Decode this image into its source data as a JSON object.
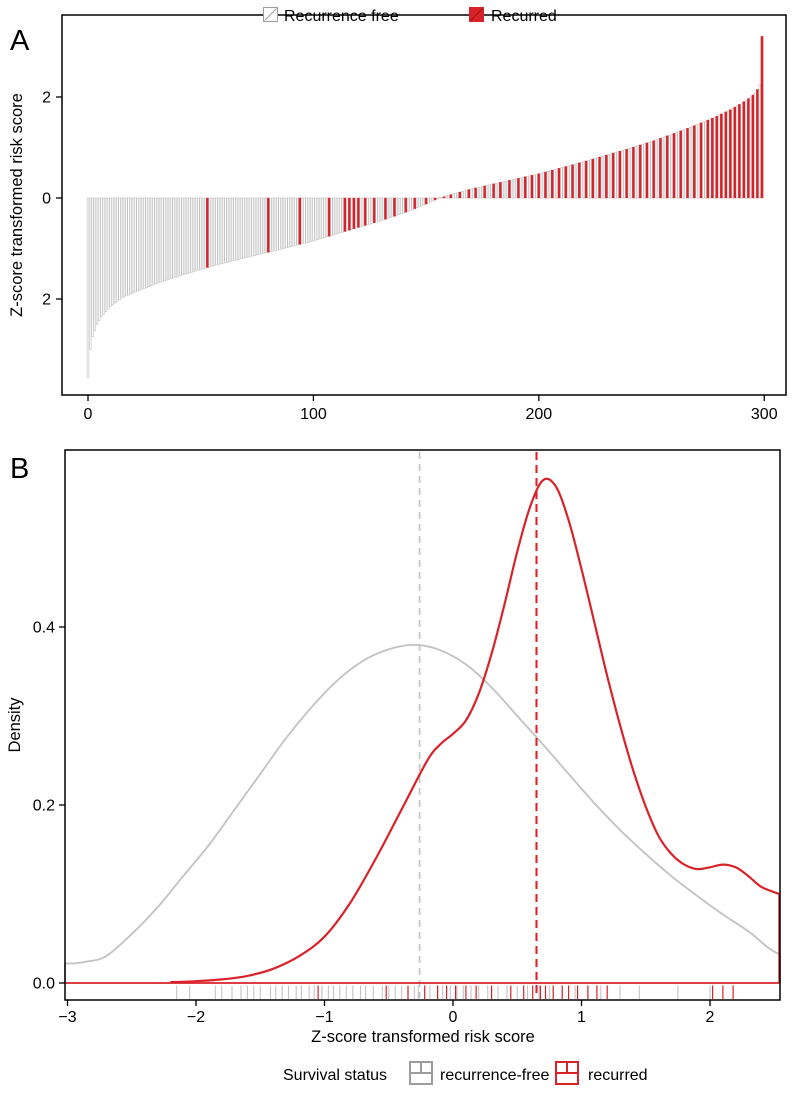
{
  "colors": {
    "red": "#d8232a",
    "red_dark": "#a01318",
    "gray": "#c4c4c4",
    "gray_dark": "#9c9c9c",
    "bar_stroke": "#c2c2c2",
    "black": "#000000",
    "white": "#ffffff"
  },
  "chart_data": [
    {
      "type": "bar",
      "panel": "A",
      "title": "",
      "xlabel": "",
      "ylabel": "Z-score transformed risk score",
      "ylim": [
        -3.9,
        3.6
      ],
      "xlim": [
        0,
        300
      ],
      "n_samples": 300,
      "legend": [
        {
          "label": "Recurrence free",
          "swatch": "white-hatched-square"
        },
        {
          "label": "Recurred",
          "swatch": "red-hatched-square"
        }
      ],
      "y_ticks": [
        {
          "value": 2,
          "label": "2"
        },
        {
          "value": 0,
          "label": "0"
        },
        {
          "value": -2,
          "label": "2"
        }
      ],
      "x_ticks": [
        {
          "value": 0,
          "label": "0"
        },
        {
          "value": 100,
          "label": "100"
        },
        {
          "value": 200,
          "label": "200"
        },
        {
          "value": 300,
          "label": "300"
        }
      ],
      "sorted_value_curve": [
        [
          0,
          -3.55
        ],
        [
          1,
          -3.0
        ],
        [
          2,
          -2.75
        ],
        [
          4,
          -2.5
        ],
        [
          6,
          -2.35
        ],
        [
          10,
          -2.15
        ],
        [
          15,
          -1.98
        ],
        [
          20,
          -1.88
        ],
        [
          30,
          -1.7
        ],
        [
          40,
          -1.55
        ],
        [
          55,
          -1.35
        ],
        [
          70,
          -1.18
        ],
        [
          85,
          -1.02
        ],
        [
          100,
          -0.85
        ],
        [
          115,
          -0.65
        ],
        [
          130,
          -0.45
        ],
        [
          140,
          -0.3
        ],
        [
          150,
          -0.12
        ],
        [
          156,
          0.0
        ],
        [
          162,
          0.08
        ],
        [
          170,
          0.18
        ],
        [
          180,
          0.28
        ],
        [
          190,
          0.38
        ],
        [
          200,
          0.48
        ],
        [
          210,
          0.6
        ],
        [
          220,
          0.72
        ],
        [
          230,
          0.85
        ],
        [
          240,
          0.98
        ],
        [
          250,
          1.12
        ],
        [
          260,
          1.28
        ],
        [
          270,
          1.45
        ],
        [
          278,
          1.6
        ],
        [
          285,
          1.75
        ],
        [
          290,
          1.88
        ],
        [
          294,
          2.0
        ],
        [
          296,
          2.08
        ],
        [
          297,
          2.15
        ],
        [
          298,
          2.25
        ],
        [
          299,
          3.2
        ]
      ],
      "recurred_ranks": [
        53,
        80,
        94,
        107,
        114,
        116,
        118,
        120,
        123,
        127,
        132,
        136,
        141,
        145,
        150,
        154,
        158,
        161,
        165,
        169,
        172,
        176,
        180,
        183,
        187,
        191,
        194,
        197,
        200,
        203,
        206,
        209,
        212,
        215,
        218,
        221,
        224,
        227,
        230,
        233,
        236,
        239,
        242,
        245,
        248,
        251,
        254,
        257,
        260,
        263,
        266,
        269,
        272,
        275,
        277,
        279,
        281,
        283,
        285,
        287,
        289,
        291,
        293,
        295,
        297,
        299
      ]
    },
    {
      "type": "line",
      "panel": "B",
      "title": "",
      "xlabel": "Z-score transformed risk score",
      "ylabel": "Density",
      "xlim": [
        -3.05,
        2.55
      ],
      "ylim": [
        0,
        0.6
      ],
      "legend_title": "Survival status",
      "y_ticks": [
        {
          "value": 0,
          "label": "0.0"
        },
        {
          "value": 0.2,
          "label": "0.2"
        },
        {
          "value": 0.4,
          "label": "0.4"
        }
      ],
      "x_ticks": [
        {
          "value": -3,
          "label": "−3"
        },
        {
          "value": -2,
          "label": "−2"
        },
        {
          "value": -1,
          "label": "−1"
        },
        {
          "value": 0,
          "label": "0"
        },
        {
          "value": 1,
          "label": "1"
        },
        {
          "value": 2,
          "label": "2"
        }
      ],
      "series": [
        {
          "name": "recurrence-free",
          "color": "#c4c4c4",
          "mean_line_x": -0.26,
          "points": [
            [
              -2.95,
              0.022
            ],
            [
              -2.85,
              0.024
            ],
            [
              -2.7,
              0.03
            ],
            [
              -2.5,
              0.055
            ],
            [
              -2.3,
              0.085
            ],
            [
              -2.1,
              0.12
            ],
            [
              -1.9,
              0.155
            ],
            [
              -1.7,
              0.195
            ],
            [
              -1.5,
              0.235
            ],
            [
              -1.3,
              0.275
            ],
            [
              -1.1,
              0.31
            ],
            [
              -0.9,
              0.34
            ],
            [
              -0.7,
              0.362
            ],
            [
              -0.5,
              0.375
            ],
            [
              -0.3,
              0.38
            ],
            [
              -0.1,
              0.374
            ],
            [
              0.1,
              0.358
            ],
            [
              0.3,
              0.332
            ],
            [
              0.5,
              0.3
            ],
            [
              0.7,
              0.268
            ],
            [
              0.9,
              0.235
            ],
            [
              1.1,
              0.202
            ],
            [
              1.3,
              0.172
            ],
            [
              1.5,
              0.145
            ],
            [
              1.7,
              0.12
            ],
            [
              1.9,
              0.098
            ],
            [
              2.1,
              0.077
            ],
            [
              2.3,
              0.058
            ],
            [
              2.45,
              0.04
            ],
            [
              2.54,
              0.032
            ]
          ],
          "rug": [
            -2.15,
            -2.05,
            -1.85,
            -1.8,
            -1.72,
            -1.65,
            -1.6,
            -1.55,
            -1.5,
            -1.42,
            -1.38,
            -1.33,
            -1.28,
            -1.22,
            -1.18,
            -1.12,
            -1.08,
            -1.02,
            -0.97,
            -0.93,
            -0.88,
            -0.83,
            -0.78,
            -0.72,
            -0.68,
            -0.62,
            -0.55,
            -0.5,
            -0.45,
            -0.4,
            -0.35,
            -0.3,
            -0.27,
            -0.22,
            -0.18,
            -0.12,
            -0.08,
            -0.02,
            0.03,
            0.08,
            0.14,
            0.2,
            0.27,
            0.35,
            0.42,
            0.5,
            0.58,
            0.67,
            0.75,
            0.85,
            0.95,
            1.05,
            1.15,
            1.3,
            1.45,
            1.75,
            2.0
          ]
        },
        {
          "name": "recurred",
          "color": "#d8232a",
          "mean_line_x": 0.65,
          "points": [
            [
              -2.2,
              0.001
            ],
            [
              -2.0,
              0.002
            ],
            [
              -1.8,
              0.004
            ],
            [
              -1.6,
              0.008
            ],
            [
              -1.4,
              0.016
            ],
            [
              -1.2,
              0.03
            ],
            [
              -1.0,
              0.052
            ],
            [
              -0.8,
              0.09
            ],
            [
              -0.6,
              0.14
            ],
            [
              -0.4,
              0.195
            ],
            [
              -0.2,
              0.25
            ],
            [
              -0.1,
              0.268
            ],
            [
              0.0,
              0.28
            ],
            [
              0.1,
              0.295
            ],
            [
              0.2,
              0.325
            ],
            [
              0.3,
              0.37
            ],
            [
              0.4,
              0.425
            ],
            [
              0.5,
              0.485
            ],
            [
              0.6,
              0.535
            ],
            [
              0.7,
              0.565
            ],
            [
              0.8,
              0.558
            ],
            [
              0.9,
              0.52
            ],
            [
              1.0,
              0.465
            ],
            [
              1.1,
              0.405
            ],
            [
              1.2,
              0.345
            ],
            [
              1.3,
              0.29
            ],
            [
              1.4,
              0.24
            ],
            [
              1.5,
              0.198
            ],
            [
              1.6,
              0.165
            ],
            [
              1.7,
              0.145
            ],
            [
              1.8,
              0.133
            ],
            [
              1.9,
              0.128
            ],
            [
              2.0,
              0.13
            ],
            [
              2.1,
              0.133
            ],
            [
              2.2,
              0.13
            ],
            [
              2.3,
              0.12
            ],
            [
              2.4,
              0.108
            ],
            [
              2.54,
              0.1
            ]
          ],
          "rug": [
            -1.05,
            -0.52,
            -0.35,
            -0.22,
            -0.12,
            -0.05,
            0.02,
            0.1,
            0.18,
            0.3,
            0.45,
            0.55,
            0.62,
            0.68,
            0.72,
            0.78,
            0.85,
            0.9,
            0.97,
            1.05,
            1.12,
            1.2,
            2.02,
            2.1,
            2.18
          ]
        }
      ]
    }
  ]
}
